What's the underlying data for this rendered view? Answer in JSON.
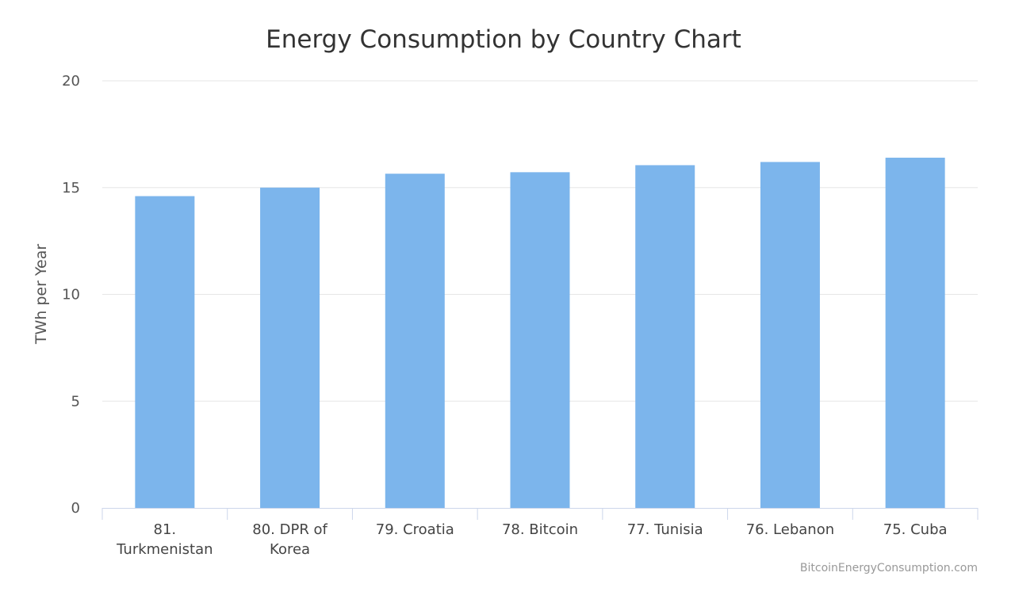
{
  "chart_data": {
    "type": "bar",
    "title": "Energy Consumption by Country Chart",
    "xlabel": "",
    "ylabel": "TWh per Year",
    "ylim": [
      0,
      20
    ],
    "yticks": [
      0,
      5,
      10,
      15,
      20
    ],
    "categories": [
      [
        "81.",
        "Turkmenistan"
      ],
      [
        "80. DPR of",
        "Korea"
      ],
      [
        "79. Croatia"
      ],
      [
        "78. Bitcoin"
      ],
      [
        "77. Tunisia"
      ],
      [
        "76. Lebanon"
      ],
      [
        "75. Cuba"
      ]
    ],
    "values": [
      14.6,
      15.0,
      15.65,
      15.72,
      16.05,
      16.2,
      16.4
    ],
    "grid": true,
    "legend": "none",
    "bar_color": "#7cb5ec",
    "credit": "BitcoinEnergyConsumption.com"
  }
}
